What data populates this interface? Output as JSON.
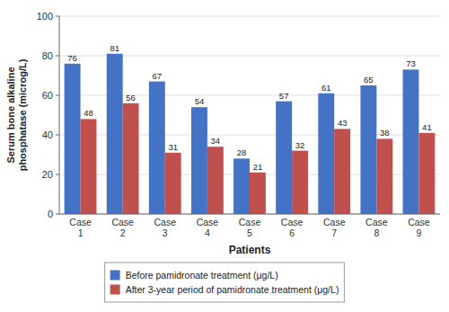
{
  "chart_data": {
    "type": "bar",
    "xlabel": "Patients",
    "ylabel": "Serum bone alkaline\nphosphatase (microg/L)",
    "categories": [
      "Case\n1",
      "Case\n2",
      "Case\n3",
      "Case\n4",
      "Case\n5",
      "Case\n6",
      "Case\n7",
      "Case\n8",
      "Case\n9"
    ],
    "series": [
      {
        "name": "Before pamidronate treatment (μg/L)",
        "color": "#4472C4",
        "values": [
          76,
          81,
          67,
          54,
          28,
          57,
          61,
          65,
          73
        ]
      },
      {
        "name": "After 3-year period of pamidronate treatment (μg/L)",
        "color": "#C0504D",
        "values": [
          48,
          56,
          31,
          34,
          21,
          32,
          43,
          38,
          41
        ]
      }
    ],
    "ylim": [
      0,
      100
    ],
    "yticks": [
      0,
      20,
      40,
      60,
      80,
      100
    ],
    "grid": true,
    "legend": "bottom",
    "data_labels": true
  }
}
